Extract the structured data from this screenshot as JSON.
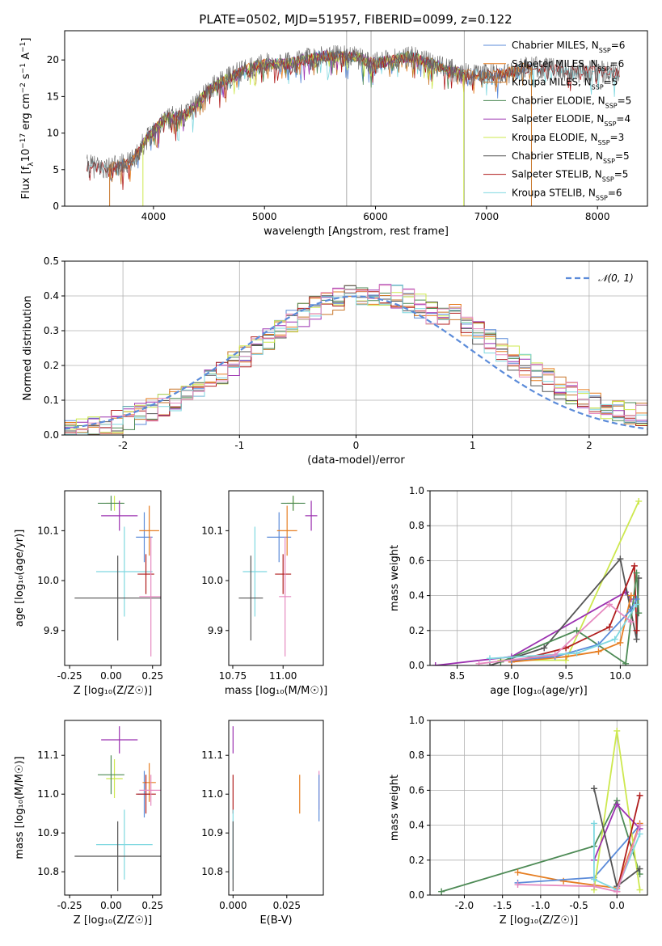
{
  "title": "PLATE=0502, MJD=51957, FIBERID=0099, z=0.122",
  "colors": {
    "Chabrier MILES": "#5b8bd9",
    "Salpeter MILES": "#e67e22",
    "Kroupa MILES": "#c8762a",
    "Chabrier ELODIE": "#4d8a55",
    "Salpeter ELODIE": "#9b30b0",
    "Kroupa ELODIE": "#cde84e",
    "Chabrier STELIB": "#555555",
    "Salpeter STELIB": "#b01d1d",
    "Kroupa STELIB": "#7fd8e0",
    "pink": "#e68ac0"
  },
  "chart_data": [
    {
      "type": "line",
      "panel": "spectrum",
      "xlabel": "wavelength [Angstrom, rest frame]",
      "ylabel": "Flux [f",
      "xticks": [
        4000,
        5000,
        6000,
        7000,
        8000
      ],
      "yticks": [
        0,
        5,
        10,
        15,
        20
      ],
      "xlim": [
        3200,
        8450
      ],
      "ylim": [
        0,
        24
      ],
      "legend_position": "upper-right",
      "series": [
        {
          "name": "Chabrier MILES, N",
          "sub": "SSP",
          "suffix": "=6"
        },
        {
          "name": "Salpeter MILES, N",
          "sub": "SSP",
          "suffix": "=6"
        },
        {
          "name": "Kroupa MILES, N",
          "sub": "SSP",
          "suffix": "=5"
        },
        {
          "name": "Chabrier ELODIE, N",
          "sub": "SSP",
          "suffix": "=5"
        },
        {
          "name": "Salpeter ELODIE, N",
          "sub": "SSP",
          "suffix": "=4"
        },
        {
          "name": "Kroupa ELODIE, N",
          "sub": "SSP",
          "suffix": "=3"
        },
        {
          "name": "Chabrier STELIB, N",
          "sub": "SSP",
          "suffix": "=5"
        },
        {
          "name": "Salpeter STELIB, N",
          "sub": "SSP",
          "suffix": "=5"
        },
        {
          "name": "Kroupa STELIB, N",
          "sub": "SSP",
          "suffix": "=6"
        }
      ],
      "continuum": [
        [
          3400,
          5.5
        ],
        [
          3600,
          5.2
        ],
        [
          3800,
          6.0
        ],
        [
          3950,
          9.5
        ],
        [
          4100,
          12.0
        ],
        [
          4300,
          12.5
        ],
        [
          4500,
          16.0
        ],
        [
          4800,
          18.5
        ],
        [
          5000,
          19.5
        ],
        [
          5200,
          19.5
        ],
        [
          5500,
          20.5
        ],
        [
          5800,
          20.5
        ],
        [
          6000,
          19.5
        ],
        [
          6300,
          20.5
        ],
        [
          6500,
          19.5
        ],
        [
          6800,
          18.0
        ],
        [
          7100,
          18.0
        ],
        [
          7400,
          19.0
        ],
        [
          7700,
          18.5
        ],
        [
          8000,
          18.5
        ],
        [
          8200,
          18.0
        ]
      ],
      "vertical_lines": [
        5740,
        5960,
        6800
      ]
    },
    {
      "type": "step",
      "panel": "residual-histogram",
      "xlabel": "(data-model)/error",
      "ylabel": "Normed distribution",
      "xticks": [
        -2,
        -1,
        0,
        1,
        2
      ],
      "yticks": [
        0.0,
        0.1,
        0.2,
        0.3,
        0.4,
        0.5
      ],
      "xlim": [
        -2.5,
        2.5
      ],
      "ylim": [
        0,
        0.5
      ],
      "legend": "𝒩(0, 1)",
      "legend_position": "upper-right",
      "grid": true,
      "gaussian": {
        "mean": 0,
        "sigma": 1,
        "color": "#5b8bd9"
      },
      "bin_width": 0.1
    },
    {
      "type": "scatter",
      "panel": "age-vs-Z",
      "xlabel": "Z [log₁₀(Z/Z☉)]",
      "ylabel": "age  [log₁₀(age/yr)]",
      "xticks": [
        -0.25,
        0.0,
        0.25
      ],
      "yticks": [
        9.9,
        10.0,
        10.1
      ],
      "xlim": [
        -0.28,
        0.3
      ],
      "ylim": [
        9.83,
        10.18
      ],
      "points": [
        {
          "model": "Chabrier MILES",
          "x": 0.2,
          "y": 10.087,
          "xerr": 0.05,
          "yerr": 0.05
        },
        {
          "model": "Salpeter MILES",
          "x": 0.23,
          "y": 10.1,
          "xerr": 0.06,
          "yerr": 0.05
        },
        {
          "model": "Kroupa ELODIE",
          "x": 0.02,
          "y": 10.155,
          "xerr": 0.05,
          "yerr": 0.015
        },
        {
          "model": "Chabrier ELODIE",
          "x": 0.0,
          "y": 10.155,
          "xerr": 0.08,
          "yerr": 0.015
        },
        {
          "model": "Salpeter ELODIE",
          "x": 0.05,
          "y": 10.13,
          "xerr": 0.11,
          "yerr": 0.03
        },
        {
          "model": "Kroupa STELIB",
          "x": 0.08,
          "y": 10.018,
          "xerr": 0.17,
          "yerr": 0.09
        },
        {
          "model": "Chabrier STELIB",
          "x": 0.04,
          "y": 9.965,
          "xerr": 0.26,
          "yerr": 0.085
        },
        {
          "model": "Salpeter STELIB",
          "x": 0.21,
          "y": 10.013,
          "xerr": 0.05,
          "yerr": 0.04
        },
        {
          "model": "pink",
          "x": 0.24,
          "y": 9.968,
          "xerr": 0.07,
          "yerr": 0.12
        }
      ]
    },
    {
      "type": "scatter",
      "panel": "age-vs-mass",
      "xlabel": "mass [log₁₀(M/M☉)]",
      "xticks": [
        10.75,
        11.0
      ],
      "yticks": [
        9.9,
        10.0,
        10.1
      ],
      "xlim": [
        10.73,
        11.2
      ],
      "ylim": [
        9.83,
        10.18
      ],
      "points": [
        {
          "model": "Chabrier MILES",
          "x": 10.98,
          "y": 10.087,
          "xerr": 0.06,
          "yerr": 0.05
        },
        {
          "model": "Salpeter MILES",
          "x": 11.02,
          "y": 10.1,
          "xerr": 0.05,
          "yerr": 0.05
        },
        {
          "model": "Kroupa ELODIE",
          "x": 11.05,
          "y": 10.155,
          "xerr": 0.03,
          "yerr": 0.015
        },
        {
          "model": "Chabrier ELODIE",
          "x": 11.05,
          "y": 10.155,
          "xerr": 0.06,
          "yerr": 0.015
        },
        {
          "model": "Salpeter ELODIE",
          "x": 11.14,
          "y": 10.13,
          "xerr": 0.03,
          "yerr": 0.03
        },
        {
          "model": "Kroupa STELIB",
          "x": 10.86,
          "y": 10.018,
          "xerr": 0.06,
          "yerr": 0.09
        },
        {
          "model": "Chabrier STELIB",
          "x": 10.84,
          "y": 9.965,
          "xerr": 0.06,
          "yerr": 0.085
        },
        {
          "model": "Salpeter STELIB",
          "x": 11.0,
          "y": 10.013,
          "xerr": 0.04,
          "yerr": 0.04
        },
        {
          "model": "pink",
          "x": 11.01,
          "y": 9.968,
          "xerr": 0.03,
          "yerr": 0.12
        }
      ]
    },
    {
      "type": "line",
      "panel": "mass-weight-vs-age",
      "xlabel": "age  [log₁₀(age/yr)]",
      "ylabel": "mass weight",
      "xticks": [
        8.5,
        9.0,
        9.5,
        10.0
      ],
      "yticks": [
        0.0,
        0.2,
        0.4,
        0.6,
        0.8,
        1.0
      ],
      "xlim": [
        8.25,
        10.25
      ],
      "ylim": [
        0,
        1.0
      ],
      "grid": true,
      "series": [
        {
          "model": "Kroupa ELODIE",
          "points": [
            [
              8.9,
              0.03
            ],
            [
              9.5,
              0.03
            ],
            [
              10.17,
              0.94
            ]
          ]
        },
        {
          "model": "Salpeter ELODIE",
          "points": [
            [
              8.3,
              0.0
            ],
            [
              9.0,
              0.05
            ],
            [
              10.05,
              0.42
            ],
            [
              10.1,
              0.38
            ]
          ]
        },
        {
          "model": "Chabrier STELIB",
          "points": [
            [
              8.8,
              0.0
            ],
            [
              9.3,
              0.1
            ],
            [
              10.0,
              0.61
            ],
            [
              10.15,
              0.15
            ],
            [
              10.17,
              0.5
            ]
          ]
        },
        {
          "model": "Salpeter STELIB",
          "points": [
            [
              9.0,
              0.02
            ],
            [
              9.5,
              0.1
            ],
            [
              9.9,
              0.22
            ],
            [
              10.13,
              0.57
            ],
            [
              10.15,
              0.2
            ]
          ]
        },
        {
          "model": "Chabrier ELODIE",
          "points": [
            [
              8.9,
              0.02
            ],
            [
              9.6,
              0.2
            ],
            [
              10.05,
              0.01
            ],
            [
              10.15,
              0.53
            ],
            [
              10.17,
              0.3
            ]
          ]
        },
        {
          "model": "Salpeter MILES",
          "points": [
            [
              9.0,
              0.02
            ],
            [
              9.5,
              0.05
            ],
            [
              9.8,
              0.08
            ],
            [
              10.0,
              0.13
            ],
            [
              10.1,
              0.4
            ]
          ]
        },
        {
          "model": "Chabrier MILES",
          "points": [
            [
              9.0,
              0.03
            ],
            [
              9.4,
              0.05
            ],
            [
              9.8,
              0.12
            ],
            [
              10.1,
              0.32
            ],
            [
              10.15,
              0.38
            ]
          ]
        },
        {
          "model": "Kroupa STELIB",
          "points": [
            [
              8.8,
              0.04
            ],
            [
              9.6,
              0.07
            ],
            [
              9.95,
              0.15
            ],
            [
              10.15,
              0.35
            ]
          ]
        },
        {
          "model": "pink",
          "points": [
            [
              8.7,
              0.01
            ],
            [
              9.4,
              0.06
            ],
            [
              9.9,
              0.35
            ],
            [
              10.1,
              0.25
            ]
          ]
        }
      ]
    },
    {
      "type": "scatter",
      "panel": "mass-vs-Z",
      "xlabel": "Z [log₁₀(Z/Z☉)]",
      "ylabel": "mass [log₁₀(M/M☉)]",
      "xticks": [
        -0.25,
        0.0,
        0.25
      ],
      "yticks": [
        10.8,
        10.9,
        11.0,
        11.1
      ],
      "xlim": [
        -0.28,
        0.3
      ],
      "ylim": [
        10.74,
        11.19
      ],
      "points": [
        {
          "model": "Chabrier MILES",
          "x": 0.2,
          "y": 11.0,
          "xerr": 0.04,
          "yerr": 0.06
        },
        {
          "model": "Salpeter MILES",
          "x": 0.23,
          "y": 11.03,
          "xerr": 0.04,
          "yerr": 0.05
        },
        {
          "model": "Kroupa ELODIE",
          "x": 0.02,
          "y": 11.04,
          "xerr": 0.05,
          "yerr": 0.05
        },
        {
          "model": "Chabrier ELODIE",
          "x": 0.0,
          "y": 11.05,
          "xerr": 0.08,
          "yerr": 0.05
        },
        {
          "model": "Salpeter ELODIE",
          "x": 0.05,
          "y": 11.14,
          "xerr": 0.11,
          "yerr": 0.035
        },
        {
          "model": "Kroupa STELIB",
          "x": 0.08,
          "y": 10.87,
          "xerr": 0.17,
          "yerr": 0.09
        },
        {
          "model": "Chabrier STELIB",
          "x": 0.04,
          "y": 10.84,
          "xerr": 0.26,
          "yerr": 0.09
        },
        {
          "model": "Salpeter STELIB",
          "x": 0.21,
          "y": 11.0,
          "xerr": 0.06,
          "yerr": 0.05
        },
        {
          "model": "pink",
          "x": 0.24,
          "y": 11.01,
          "xerr": 0.07,
          "yerr": 0.04
        }
      ]
    },
    {
      "type": "scatter",
      "panel": "mass-vs-ebv",
      "xlabel": "E(B-V)",
      "xticks": [
        0.0,
        0.025
      ],
      "yticks": [
        10.8,
        10.9,
        11.0,
        11.1
      ],
      "xlim": [
        -0.002,
        0.042
      ],
      "ylim": [
        10.74,
        11.19
      ],
      "points": [
        {
          "model": "Salpeter ELODIE",
          "x": 0.0,
          "y": 11.14,
          "xerr": 0.0,
          "yerr": 0.035
        },
        {
          "model": "Salpeter STELIB",
          "x": 0.0,
          "y": 11.0,
          "xerr": 0.0,
          "yerr": 0.05
        },
        {
          "model": "Kroupa STELIB",
          "x": 0.0,
          "y": 10.87,
          "xerr": 0.0,
          "yerr": 0.09
        },
        {
          "model": "Chabrier STELIB",
          "x": 0.0,
          "y": 10.84,
          "xerr": 0.0,
          "yerr": 0.09
        },
        {
          "model": "Salpeter MILES",
          "x": 0.031,
          "y": 11.0,
          "xerr": 0.0,
          "yerr": 0.05
        },
        {
          "model": "pink",
          "x": 0.04,
          "y": 11.01,
          "xerr": 0.0,
          "yerr": 0.05
        },
        {
          "model": "Chabrier MILES",
          "x": 0.04,
          "y": 10.99,
          "xerr": 0.0,
          "yerr": 0.06
        }
      ]
    },
    {
      "type": "line",
      "panel": "mass-weight-vs-Z",
      "xlabel": "Z [log₁₀(Z/Z☉)]",
      "ylabel": "mass weight",
      "xticks": [
        -2.0,
        -1.5,
        -1.0,
        -0.5,
        0.0
      ],
      "yticks": [
        0.0,
        0.2,
        0.4,
        0.6,
        0.8,
        1.0
      ],
      "xlim": [
        -2.45,
        0.4
      ],
      "ylim": [
        0,
        1.0
      ],
      "grid": true,
      "series": [
        {
          "model": "Chabrier ELODIE",
          "points": [
            [
              -2.3,
              0.02
            ],
            [
              -0.3,
              0.28
            ],
            [
              0.0,
              0.54
            ],
            [
              0.3,
              0.12
            ]
          ]
        },
        {
          "model": "Salpeter MILES",
          "points": [
            [
              -1.3,
              0.13
            ],
            [
              -0.7,
              0.08
            ],
            [
              0.0,
              0.04
            ],
            [
              0.3,
              0.41
            ]
          ]
        },
        {
          "model": "Chabrier MILES",
          "points": [
            [
              -1.3,
              0.07
            ],
            [
              -0.3,
              0.1
            ],
            [
              0.3,
              0.4
            ]
          ]
        },
        {
          "model": "Kroupa ELODIE",
          "points": [
            [
              -0.3,
              0.03
            ],
            [
              0.0,
              0.94
            ],
            [
              0.3,
              0.03
            ]
          ]
        },
        {
          "model": "Salpeter ELODIE",
          "points": [
            [
              -0.3,
              0.2
            ],
            [
              0.0,
              0.52
            ],
            [
              0.3,
              0.38
            ]
          ]
        },
        {
          "model": "Chabrier STELIB",
          "points": [
            [
              -0.3,
              0.61
            ],
            [
              0.0,
              0.05
            ],
            [
              0.3,
              0.15
            ]
          ]
        },
        {
          "model": "Salpeter STELIB",
          "points": [
            [
              0.0,
              0.02
            ],
            [
              0.3,
              0.57
            ]
          ]
        },
        {
          "model": "Kroupa STELIB",
          "points": [
            [
              -0.3,
              0.41
            ],
            [
              -0.3,
              0.09
            ],
            [
              0.0,
              0.03
            ],
            [
              0.3,
              0.35
            ]
          ]
        },
        {
          "model": "pink",
          "points": [
            [
              -1.3,
              0.06
            ],
            [
              -0.3,
              0.05
            ],
            [
              0.0,
              0.02
            ],
            [
              0.3,
              0.4
            ]
          ]
        }
      ]
    }
  ]
}
